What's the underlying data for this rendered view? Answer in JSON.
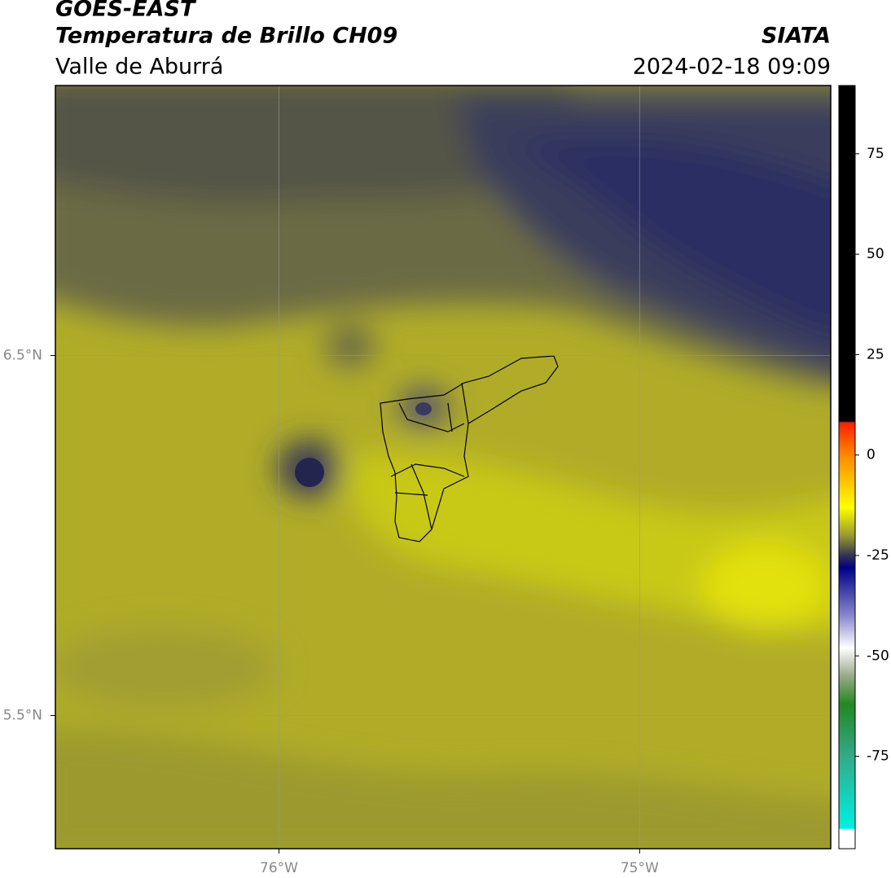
{
  "map": {
    "title": "GOES-EAST",
    "subtitle": "Temperatura de Brillo CH09",
    "region": "Valle de Aburrá",
    "source": "SIATA",
    "datetime": "2024-02-18 09:09",
    "xlim": [
      -76.62,
      -74.47
    ],
    "ylim": [
      5.13,
      7.25
    ],
    "xticks": [
      {
        "value": -76,
        "label": "76°W"
      },
      {
        "value": -75,
        "label": "75°W"
      }
    ],
    "yticks": [
      {
        "value": 6.5,
        "label": "6.5°N"
      },
      {
        "value": 5.5,
        "label": "5.5°N"
      }
    ],
    "grid": true,
    "colorbar": {
      "lim": [
        -98,
        92
      ],
      "ticks": [
        75,
        50,
        25,
        0,
        -25,
        -50,
        -75
      ],
      "stops": [
        {
          "value": 92,
          "color": "#000000"
        },
        {
          "value": 8.5,
          "color": "#000000"
        },
        {
          "value": 8,
          "color": "#ff2000"
        },
        {
          "value": 0,
          "color": "#ff8800"
        },
        {
          "value": -13,
          "color": "#ffff00"
        },
        {
          "value": -20,
          "color": "#999933"
        },
        {
          "value": -25,
          "color": "#333355"
        },
        {
          "value": -28,
          "color": "#000088"
        },
        {
          "value": -40,
          "color": "#8888cc"
        },
        {
          "value": -48,
          "color": "#ffffff"
        },
        {
          "value": -55,
          "color": "#99aa88"
        },
        {
          "value": -62,
          "color": "#228822"
        },
        {
          "value": -75,
          "color": "#33aa88"
        },
        {
          "value": -92,
          "color": "#00eedd"
        },
        {
          "value": -93,
          "color": "#00eedd"
        },
        {
          "value": -93.1,
          "color": "#ffffff"
        },
        {
          "value": -98,
          "color": "#ffffff"
        }
      ]
    }
  }
}
